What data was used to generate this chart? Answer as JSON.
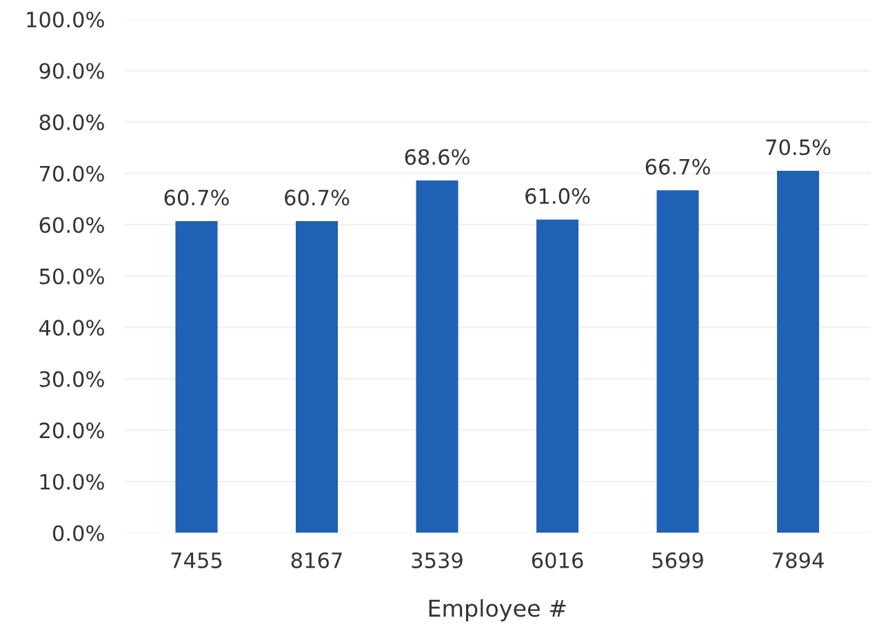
{
  "chart_data": {
    "type": "bar",
    "xlabel": "Employee #",
    "categories": [
      "7455",
      "8167",
      "3539",
      "6016",
      "5699",
      "7894"
    ],
    "values": [
      60.7,
      60.7,
      68.6,
      61.0,
      66.7,
      70.5
    ],
    "value_labels": [
      "60.7%",
      "60.7%",
      "68.6%",
      "61.0%",
      "66.7%",
      "70.5%"
    ],
    "color": "#1f61b5",
    "ylim": [
      0,
      100
    ],
    "yticks": [
      {
        "value": 0,
        "label": "0.0%"
      },
      {
        "value": 10,
        "label": "10.0%"
      },
      {
        "value": 20,
        "label": "20.0%"
      },
      {
        "value": 30,
        "label": "30.0%"
      },
      {
        "value": 40,
        "label": "40.0%"
      },
      {
        "value": 50,
        "label": "50.0%"
      },
      {
        "value": 60,
        "label": "60.0%"
      },
      {
        "value": 70,
        "label": "70.0%"
      },
      {
        "value": 80,
        "label": "80.0%"
      },
      {
        "value": 90,
        "label": "90.0%"
      },
      {
        "value": 100,
        "label": "100.0%"
      }
    ],
    "grid": "y"
  }
}
